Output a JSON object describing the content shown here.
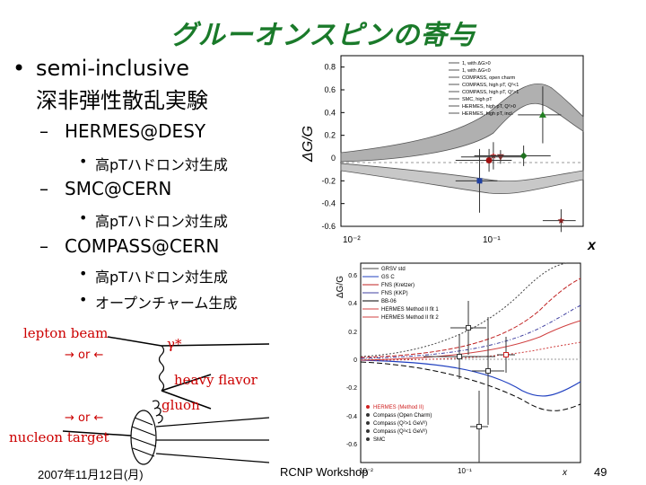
{
  "slide": {
    "title": "グルーオンスピンの寄与",
    "bullet1_line1": "semi-inclusive",
    "bullet1_line2": "深非弾性散乱実験",
    "bullet_marker": "•",
    "dash": "–",
    "sub_hermes": "HERMES@DESY",
    "sub_smc": "SMC@CERN",
    "sub_compass": "COMPASS@CERN",
    "item_highpt": "高pTハドロン対生成",
    "item_open_charm": "オープンチャーム生成"
  },
  "diagram": {
    "lepton_beam": "lepton beam",
    "or_top": "→ or ←",
    "gamma": "γ*",
    "heavy_flavor": "heavy flavor",
    "gluon": "gluon",
    "or_bottom": "→ or ←",
    "nucleon_target": "nucleon target"
  },
  "footer": {
    "date": "2007年11月12日(月)",
    "workshop": "RCNP Workshop",
    "page": "49"
  },
  "chart_data": [
    {
      "type": "line",
      "ylabel": "ΔG/G",
      "xlabel": "x",
      "xscale": "log",
      "xlim": [
        0.01,
        0.3
      ],
      "ylim": [
        -0.6,
        0.9
      ],
      "x_ticks": [
        "10⁻²",
        "10⁻¹"
      ],
      "y_ticks": [
        "0.8",
        "0.6",
        "0.4",
        "0.2",
        "0",
        "-0.2",
        "-0.4",
        "-0.6"
      ],
      "legend_position": "top-right",
      "legend": [
        "1, with ΔG>0",
        "1, with ΔG<0",
        "COMPASS, open charm",
        "COMPASS, high pT, Q²<1",
        "COMPASS, high pT, Q²>1",
        "SMC, high pT",
        "HERMES, high pT, Q²>0",
        "HERMES, high pT, incl."
      ],
      "curve_fill": "#b0b0b0",
      "points": [
        {
          "x": 0.085,
          "y": 0.02,
          "ex": 0.02,
          "ey": 0.12,
          "marker": "star",
          "color": "#b03030"
        },
        {
          "x": 0.08,
          "y": -0.02,
          "ex": 0.03,
          "ey": 0.1,
          "marker": "circle",
          "color": "#a01010"
        },
        {
          "x": 0.094,
          "y": 0.01,
          "ex": 0.04,
          "ey": 0.06,
          "marker": "triangle-down",
          "color": "#803030"
        },
        {
          "x": 0.13,
          "y": 0.02,
          "ex": 0.06,
          "ey": 0.09,
          "marker": "diamond",
          "color": "#207020"
        },
        {
          "x": 0.17,
          "y": 0.38,
          "ex": 0.05,
          "ey": 0.25,
          "marker": "triangle-up",
          "color": "#208020"
        },
        {
          "x": 0.07,
          "y": -0.2,
          "ex": 0.02,
          "ey": 0.28,
          "marker": "square",
          "color": "#2040a0"
        },
        {
          "x": 0.22,
          "y": -0.55,
          "ex": 0.05,
          "ey": 0.1,
          "marker": "star",
          "color": "#8a2020"
        }
      ]
    },
    {
      "type": "line",
      "ylabel": "ΔG/G",
      "xlabel": "x",
      "xscale": "log",
      "y_ticks": [
        "0.6",
        "0.4",
        "0.2",
        "0",
        "-0.2",
        "-0.4",
        "-0.6"
      ],
      "x_ticks": [
        "10⁻²",
        "10⁻¹"
      ],
      "legend_models": [
        "GRSV std",
        "GS C",
        "FNS (Kretzer)",
        "FNS (KKP)",
        "BB-06",
        "HERMES Method II fit 1",
        "HERMES Method II fit 2"
      ],
      "legend_data": [
        "HERMES (Method II)",
        "Compass (Open Charm)",
        "Compass (Q²>1 GeV²)",
        "Compass (Q²<1 GeV²)",
        "SMC"
      ]
    }
  ]
}
